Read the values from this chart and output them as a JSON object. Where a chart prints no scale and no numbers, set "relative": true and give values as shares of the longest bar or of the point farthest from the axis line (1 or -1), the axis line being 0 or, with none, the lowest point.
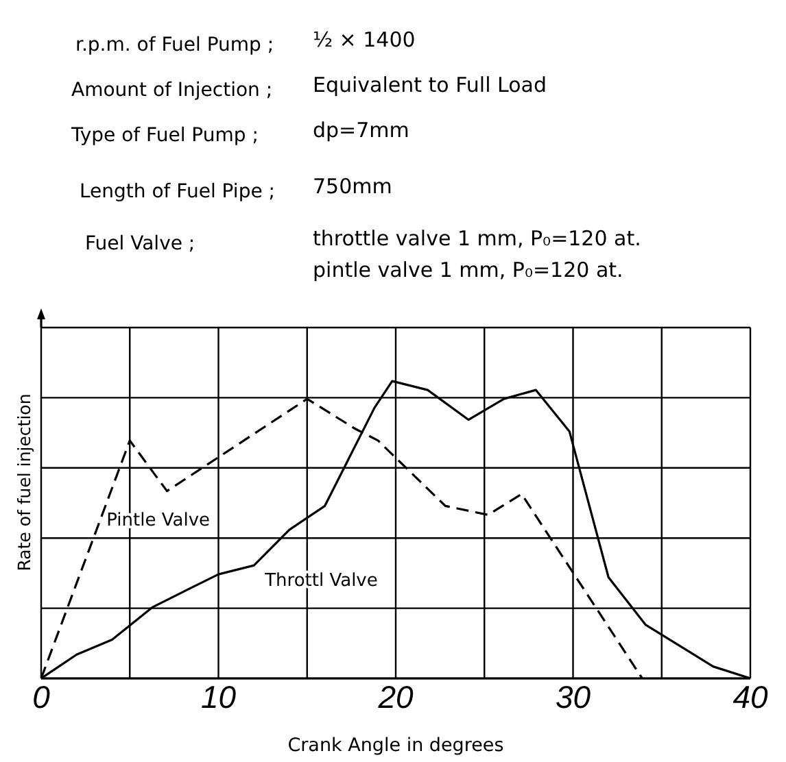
{
  "chart_data": {
    "type": "line",
    "annotations": [
      "r.p.m. of Fuel Pump ;",
      "½ × 1400",
      "Amount of Injection ;",
      "Equivalent to Full Load",
      "Type of Fuel Pump ;",
      "dp=7mm",
      "Length of Fuel Pipe ;",
      "750mm",
      "Fuel Valve ;",
      "throttle valve 1 mm, P₀=120 at.\npintle valve 1 mm, P₀=120 at."
    ],
    "xlabel": "Crank Angle in degrees",
    "ylabel": "Rate of fuel injection",
    "relative": true,
    "xlim": [
      0,
      40
    ],
    "xticks": [
      0,
      {
        "value": 5,
        "label": null
      },
      10,
      {
        "value": 15,
        "label": null
      },
      20,
      {
        "value": 25,
        "label": null
      },
      30,
      {
        "value": 35,
        "label": null
      },
      40
    ],
    "grid": true,
    "marker": "none",
    "series": [
      {
        "name": "Throttl Valve",
        "color": "#000000",
        "line_style": "solid",
        "x": [
          0,
          1,
          2,
          4,
          6.3,
          8.3,
          10,
          12,
          14,
          16,
          18.8,
          19.8,
          21.8,
          24.1,
          26.1,
          27.9,
          29.8,
          32,
          34.1,
          37.9,
          40
        ],
        "values": [
          0,
          0.04,
          0.08,
          0.13,
          0.24,
          0.3,
          0.35,
          0.38,
          0.5,
          0.58,
          0.91,
          1,
          0.97,
          0.87,
          0.94,
          0.97,
          0.83,
          0.34,
          0.18,
          0.04,
          0
        ]
      },
      {
        "name": "Pintle Valve",
        "color": "#000000",
        "line_style": "dashed",
        "x": [
          0,
          5,
          7.1,
          15,
          17.7,
          19,
          22.8,
          25.2,
          27.1,
          33.9
        ],
        "values": [
          0,
          0.8,
          0.63,
          0.94,
          0.84,
          0.8,
          0.58,
          0.55,
          0.62,
          0
        ]
      }
    ]
  }
}
